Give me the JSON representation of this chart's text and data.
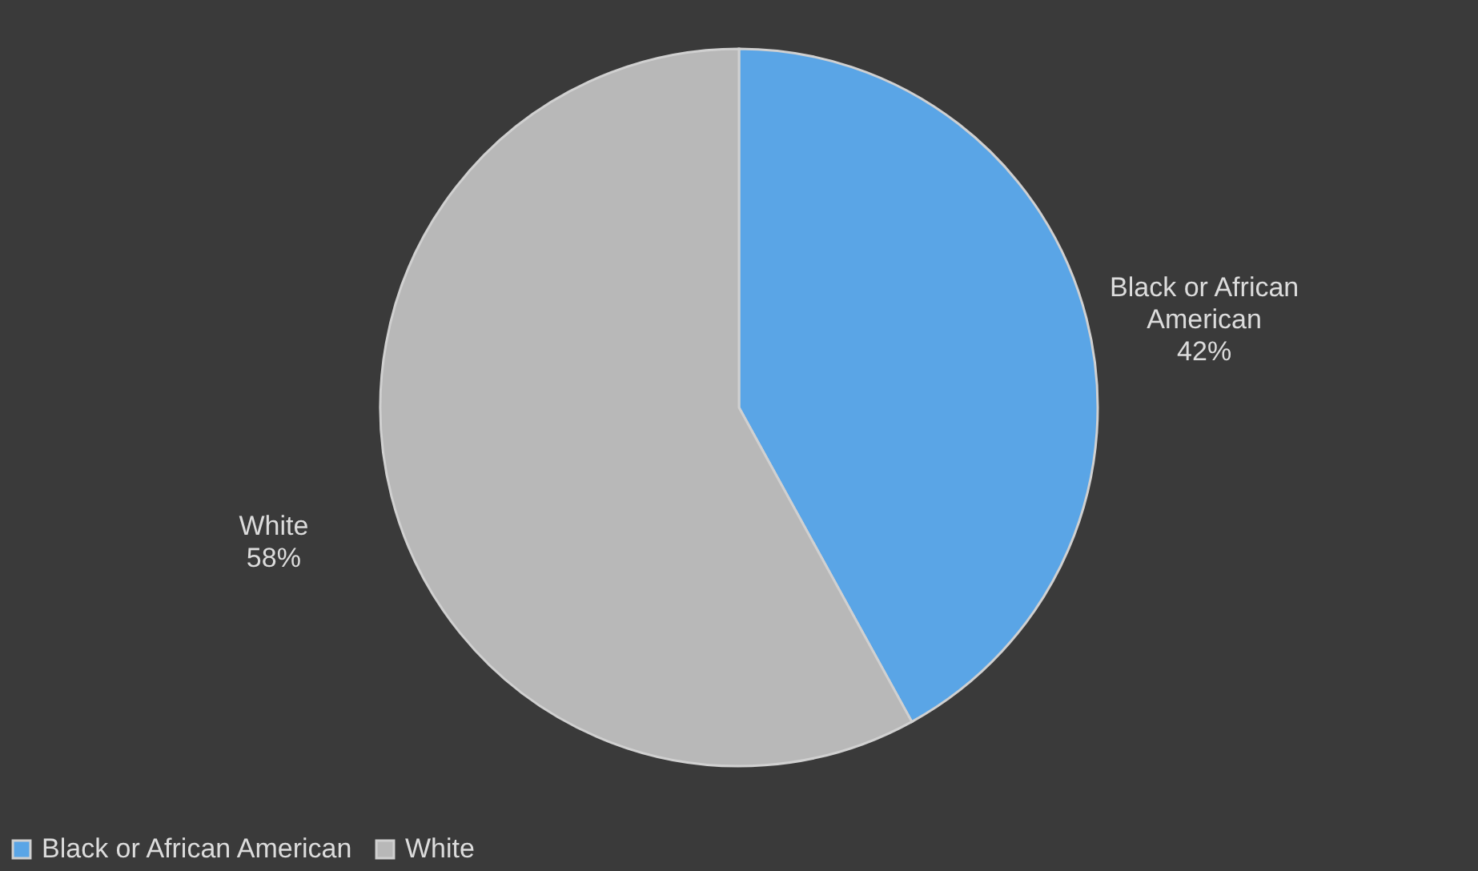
{
  "chart_data": {
    "type": "pie",
    "categories": [
      "Black or African American",
      "White"
    ],
    "values": [
      42,
      58
    ],
    "value_labels": [
      "42%",
      "58%"
    ],
    "colors": [
      "#5aa5e6",
      "#b8b8b8"
    ],
    "data_labels": true,
    "legend": "bottom"
  }
}
